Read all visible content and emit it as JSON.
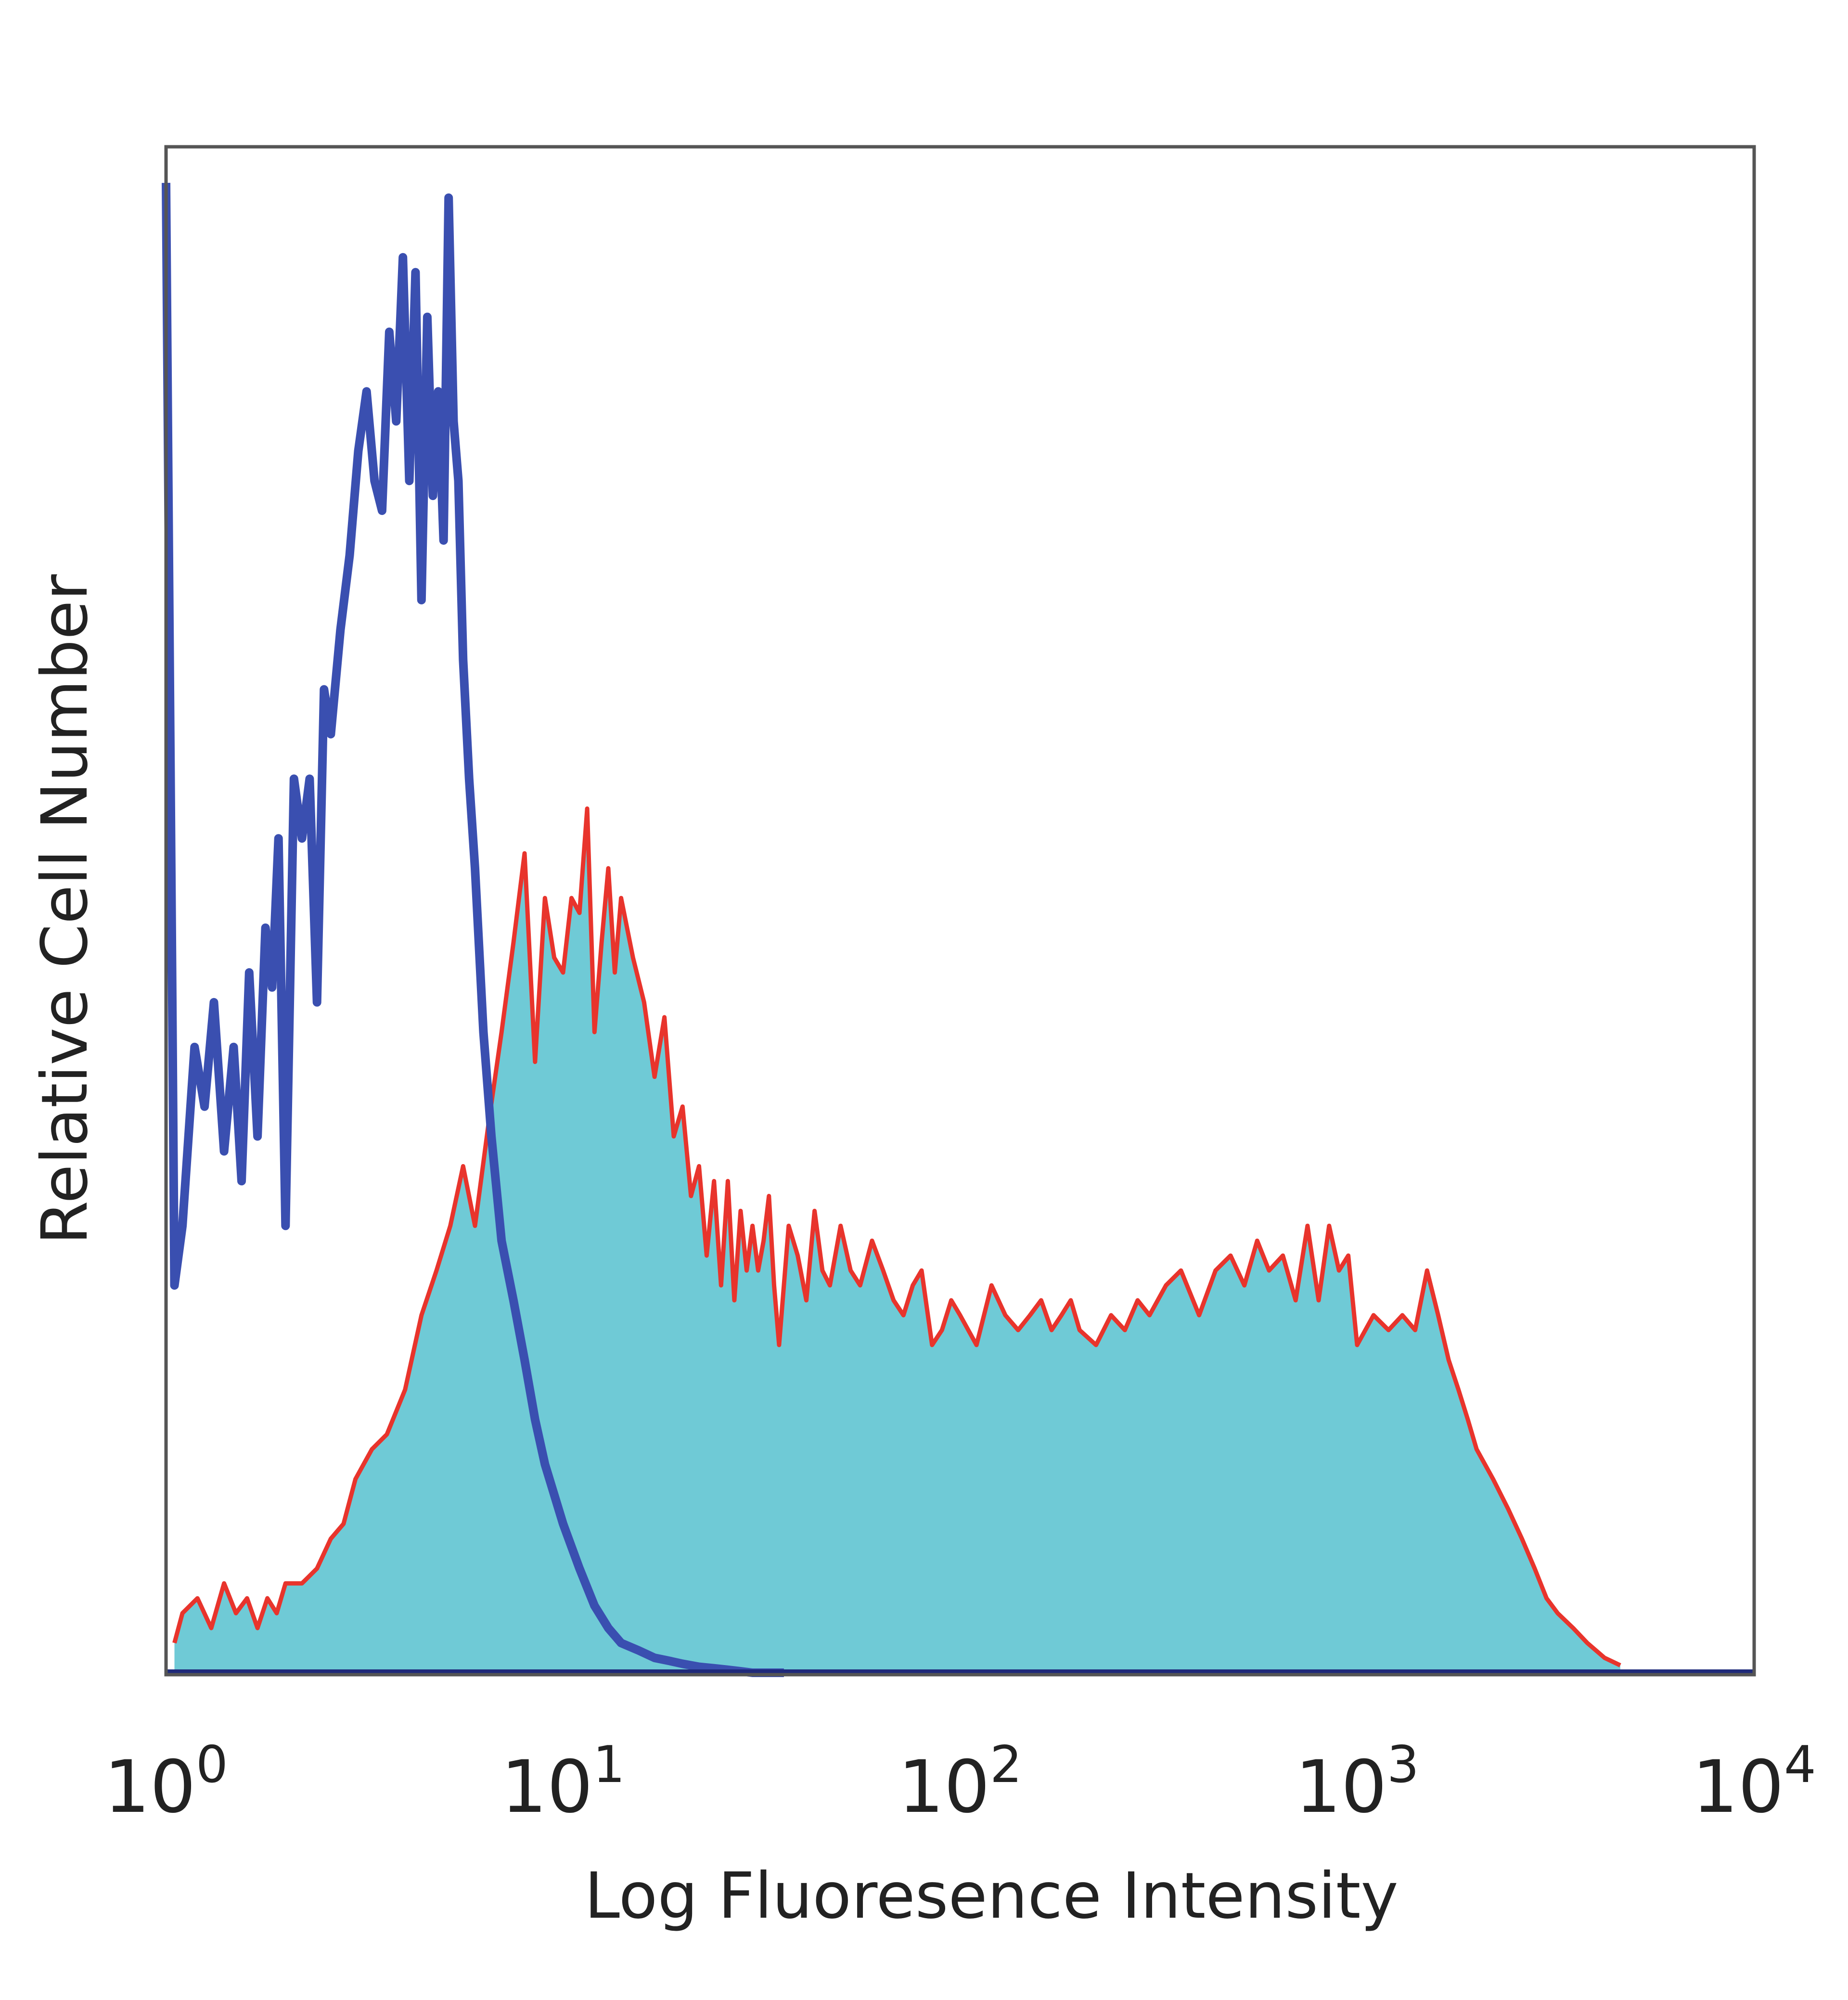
{
  "chart_data": {
    "type": "area",
    "xlabel": "Log Fluoresence Intensity",
    "ylabel": "Relative Cell Number",
    "x_scale": "log",
    "xlim": [
      1,
      10000
    ],
    "ylim": [
      0,
      1
    ],
    "grid": false,
    "x_ticks": [
      {
        "value": 1,
        "base": "10",
        "exp": "0"
      },
      {
        "value": 10,
        "base": "10",
        "exp": "1"
      },
      {
        "value": 100,
        "base": "10",
        "exp": "2"
      },
      {
        "value": 1000,
        "base": "10",
        "exp": "3"
      },
      {
        "value": 10000,
        "base": "10",
        "exp": "4"
      }
    ],
    "colors": {
      "control_line": "#3a4fb0",
      "stained_fill": "#6fcad6",
      "stained_line": "#e8342c",
      "frame": "#555555",
      "baseline": "#1f2a7a"
    },
    "series": [
      {
        "style": "line",
        "x": [
          1.0,
          1.05,
          1.1,
          1.18,
          1.25,
          1.32,
          1.4,
          1.48,
          1.55,
          1.62,
          1.7,
          1.78,
          1.85,
          1.92,
          2.0,
          2.1,
          2.2,
          2.3,
          2.4,
          2.5,
          2.6,
          2.75,
          2.9,
          3.05,
          3.2,
          3.35,
          3.5,
          3.65,
          3.8,
          3.95,
          4.1,
          4.25,
          4.4,
          4.55,
          4.7,
          4.85,
          5.0,
          5.15,
          5.3,
          5.45,
          5.6,
          5.8,
          6.0,
          6.3,
          6.6,
          7.0,
          7.5,
          8.0,
          8.5,
          9.0,
          10.0,
          11.0,
          12.0,
          13.0,
          14.0,
          15.5,
          17.0,
          18.5,
          20.0,
          22.0,
          24.0,
          26.0,
          28.0,
          30.0,
          33.0,
          36.0
        ],
        "y": [
          1.0,
          0.26,
          0.3,
          0.42,
          0.38,
          0.45,
          0.35,
          0.42,
          0.33,
          0.47,
          0.36,
          0.5,
          0.46,
          0.56,
          0.3,
          0.6,
          0.56,
          0.6,
          0.45,
          0.66,
          0.63,
          0.7,
          0.75,
          0.82,
          0.86,
          0.8,
          0.78,
          0.9,
          0.84,
          0.95,
          0.8,
          0.94,
          0.72,
          0.91,
          0.79,
          0.86,
          0.76,
          0.99,
          0.84,
          0.8,
          0.68,
          0.6,
          0.54,
          0.43,
          0.36,
          0.29,
          0.25,
          0.21,
          0.17,
          0.14,
          0.1,
          0.07,
          0.045,
          0.03,
          0.02,
          0.015,
          0.01,
          0.008,
          0.006,
          0.004,
          0.003,
          0.002,
          0.001,
          0.0,
          0.0,
          0.0
        ]
      },
      {
        "style": "filled",
        "x": [
          1.05,
          1.1,
          1.2,
          1.3,
          1.4,
          1.5,
          1.6,
          1.7,
          1.8,
          1.9,
          2.0,
          2.2,
          2.4,
          2.6,
          2.8,
          3.0,
          3.3,
          3.6,
          4.0,
          4.4,
          4.8,
          5.2,
          5.6,
          6.0,
          6.5,
          7.0,
          7.5,
          8.0,
          8.5,
          9.0,
          9.5,
          10.0,
          10.5,
          11.0,
          11.5,
          12.0,
          12.5,
          13.0,
          13.5,
          14.0,
          15.0,
          16.0,
          17.0,
          18.0,
          19.0,
          20.0,
          21.0,
          22.0,
          23.0,
          24.0,
          25.0,
          26.0,
          27.0,
          28.0,
          29.0,
          30.0,
          31.0,
          32.0,
          33.0,
          34.0,
          35.0,
          37.0,
          39.0,
          41.0,
          43.0,
          45.0,
          47.0,
          50.0,
          53.0,
          56.0,
          60.0,
          64.0,
          68.0,
          72.0,
          76.0,
          80.0,
          85.0,
          90.0,
          95.0,
          100.0,
          110.0,
          120.0,
          130.0,
          140.0,
          150.0,
          160.0,
          170.0,
          180.0,
          190.0,
          200.0,
          220.0,
          240.0,
          260.0,
          280.0,
          300.0,
          330.0,
          360.0,
          400.0,
          440.0,
          480.0,
          520.0,
          560.0,
          600.0,
          650.0,
          700.0,
          750.0,
          800.0,
          850.0,
          900.0,
          950.0,
          1000.0,
          1100.0,
          1200.0,
          1300.0,
          1400.0,
          1500.0,
          1600.0,
          1700.0,
          1800.0,
          1900.0,
          2000.0,
          2200.0,
          2400.0,
          2600.0,
          2800.0,
          3000.0,
          3200.0,
          3500.0,
          3800.0,
          4200.0,
          4600.0
        ],
        "y": [
          0.02,
          0.04,
          0.05,
          0.03,
          0.06,
          0.04,
          0.05,
          0.03,
          0.05,
          0.04,
          0.06,
          0.06,
          0.07,
          0.09,
          0.1,
          0.13,
          0.15,
          0.16,
          0.19,
          0.24,
          0.27,
          0.3,
          0.34,
          0.3,
          0.37,
          0.43,
          0.49,
          0.55,
          0.41,
          0.52,
          0.48,
          0.47,
          0.52,
          0.51,
          0.58,
          0.43,
          0.49,
          0.54,
          0.47,
          0.52,
          0.48,
          0.45,
          0.4,
          0.44,
          0.36,
          0.38,
          0.32,
          0.34,
          0.28,
          0.33,
          0.26,
          0.33,
          0.25,
          0.31,
          0.27,
          0.3,
          0.27,
          0.29,
          0.32,
          0.26,
          0.22,
          0.3,
          0.28,
          0.25,
          0.31,
          0.27,
          0.26,
          0.3,
          0.27,
          0.26,
          0.29,
          0.27,
          0.25,
          0.24,
          0.26,
          0.27,
          0.22,
          0.23,
          0.25,
          0.24,
          0.22,
          0.26,
          0.24,
          0.23,
          0.24,
          0.25,
          0.23,
          0.24,
          0.25,
          0.23,
          0.22,
          0.24,
          0.23,
          0.25,
          0.24,
          0.26,
          0.27,
          0.24,
          0.27,
          0.28,
          0.26,
          0.29,
          0.27,
          0.28,
          0.25,
          0.3,
          0.25,
          0.3,
          0.27,
          0.28,
          0.22,
          0.24,
          0.23,
          0.24,
          0.23,
          0.27,
          0.24,
          0.21,
          0.19,
          0.17,
          0.15,
          0.13,
          0.11,
          0.09,
          0.07,
          0.05,
          0.04,
          0.03,
          0.02,
          0.01,
          0.005
        ]
      }
    ]
  }
}
